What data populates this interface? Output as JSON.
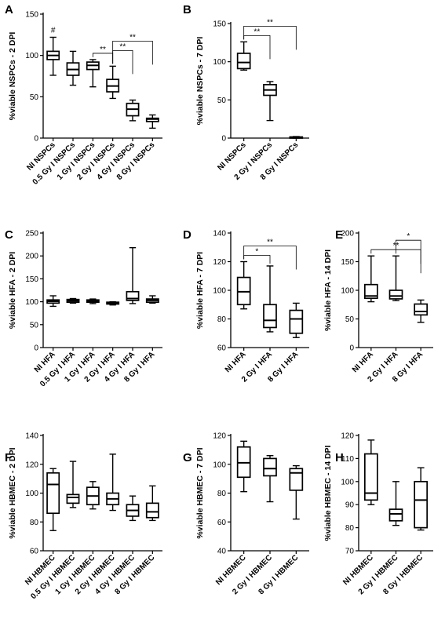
{
  "chart_data": [
    {
      "panel": "A",
      "type": "box",
      "ylabel": "%viable NSPCs - 2 DPI",
      "ylim": [
        0,
        150
      ],
      "yticks": [
        0,
        50,
        100,
        150
      ],
      "categories": [
        "NI NSPCs",
        "0.5 Gy I NSPCs",
        "1 Gy I NSPCs",
        "2 Gy I NSPCs",
        "4 Gy I NSPCs",
        "8 Gy I NSPCs"
      ],
      "boxes": [
        {
          "min": 76,
          "q1": 95,
          "median": 100,
          "q3": 105,
          "max": 122
        },
        {
          "min": 64,
          "q1": 76,
          "median": 83,
          "q3": 91,
          "max": 105
        },
        {
          "min": 62,
          "q1": 83,
          "median": 88,
          "q3": 92,
          "max": 95
        },
        {
          "min": 48,
          "q1": 56,
          "median": 63,
          "q3": 71,
          "max": 87
        },
        {
          "min": 21,
          "q1": 27,
          "median": 35,
          "q3": 42,
          "max": 46
        },
        {
          "min": 12,
          "q1": 20,
          "median": 23,
          "q3": 24,
          "max": 28
        }
      ],
      "annotations": [
        {
          "text": "#",
          "over": 0
        },
        {
          "text": "**",
          "from": 2,
          "to": 3
        },
        {
          "text": "**",
          "from": 3,
          "to": 4
        },
        {
          "text": "**",
          "from": 3,
          "to": 5
        }
      ]
    },
    {
      "panel": "B",
      "type": "box",
      "ylabel": "%viable NSPCs - 7 DPI",
      "ylim": [
        0,
        150
      ],
      "yticks": [
        0,
        50,
        100,
        150
      ],
      "categories": [
        "NI NSPCs",
        "2 Gy I NSPCs",
        "8 Gy I NSPCs"
      ],
      "boxes": [
        {
          "min": 89,
          "q1": 91,
          "median": 99,
          "q3": 111,
          "max": 126
        },
        {
          "min": 23,
          "q1": 56,
          "median": 63,
          "q3": 70,
          "max": 74
        },
        {
          "min": 0,
          "q1": 0,
          "median": 1,
          "q3": 1.5,
          "max": 2
        }
      ],
      "annotations": [
        {
          "text": "**",
          "from": 0,
          "to": 1
        },
        {
          "text": "**",
          "from": 0,
          "to": 2
        }
      ]
    },
    {
      "panel": "C",
      "type": "box",
      "ylabel": "%viable HFA - 2 DPI",
      "ylim": [
        0,
        250
      ],
      "yticks": [
        0,
        50,
        100,
        150,
        200,
        250
      ],
      "categories": [
        "NI HFA",
        "0.5 Gy I HFA",
        "1 Gy I HFA",
        "2 Gy I HFA",
        "4 Gy I HFA",
        "8 Gy I HFA"
      ],
      "boxes": [
        {
          "min": 90,
          "q1": 97,
          "median": 101,
          "q3": 104,
          "max": 113
        },
        {
          "min": 97,
          "q1": 99,
          "median": 102,
          "q3": 105,
          "max": 107
        },
        {
          "min": 96,
          "q1": 99,
          "median": 101,
          "q3": 104,
          "max": 106
        },
        {
          "min": 93,
          "q1": 95,
          "median": 97,
          "q3": 99,
          "max": 100
        },
        {
          "min": 96,
          "q1": 103,
          "median": 107,
          "q3": 122,
          "max": 218
        },
        {
          "min": 97,
          "q1": 99,
          "median": 103,
          "q3": 106,
          "max": 113
        }
      ],
      "annotations": []
    },
    {
      "panel": "D",
      "type": "box",
      "ylabel": "%viable HFA - 7 DPI",
      "ylim": [
        60,
        140
      ],
      "yticks": [
        60,
        80,
        100,
        120,
        140
      ],
      "categories": [
        "NI HFA",
        "2 Gy I HFA",
        "8 Gy I HFA"
      ],
      "boxes": [
        {
          "min": 87,
          "q1": 90,
          "median": 99,
          "q3": 109,
          "max": 120
        },
        {
          "min": 71,
          "q1": 74,
          "median": 79,
          "q3": 90,
          "max": 117
        },
        {
          "min": 67,
          "q1": 70,
          "median": 80,
          "q3": 86,
          "max": 91
        }
      ],
      "annotations": [
        {
          "text": "*",
          "from": 0,
          "to": 1
        },
        {
          "text": "**",
          "from": 0,
          "to": 2
        }
      ]
    },
    {
      "panel": "E",
      "type": "box",
      "ylabel": "%viable HFA - 14 DPI",
      "ylim": [
        0,
        200
      ],
      "yticks": [
        0,
        50,
        100,
        150,
        200
      ],
      "categories": [
        "NI HFA",
        "2 Gy I HFA",
        "8 Gy I HFA"
      ],
      "boxes": [
        {
          "min": 80,
          "q1": 86,
          "median": 90,
          "q3": 110,
          "max": 160
        },
        {
          "min": 82,
          "q1": 85,
          "median": 90,
          "q3": 100,
          "max": 160
        },
        {
          "min": 44,
          "q1": 57,
          "median": 63,
          "q3": 76,
          "max": 83
        }
      ],
      "annotations": [
        {
          "text": "**",
          "from": 0,
          "to": 2
        },
        {
          "text": "*",
          "from": 1,
          "to": 2
        }
      ]
    },
    {
      "panel": "F",
      "type": "box",
      "ylabel": "%viable HBMEC - 2 DPI",
      "ylim": [
        60,
        140
      ],
      "yticks": [
        60,
        80,
        100,
        120,
        140
      ],
      "categories": [
        "NI HBMEC",
        "0.5 Gy I HBMEC",
        "1 Gy I HBMEC",
        "2 Gy I HBMEC",
        "4 Gy I HBMEC",
        "8 Gy I HBMEC"
      ],
      "boxes": [
        {
          "min": 74,
          "q1": 86,
          "median": 106,
          "q3": 114,
          "max": 117
        },
        {
          "min": 90,
          "q1": 93,
          "median": 97,
          "q3": 99,
          "max": 122
        },
        {
          "min": 89,
          "q1": 92,
          "median": 98,
          "q3": 104,
          "max": 108
        },
        {
          "min": 88,
          "q1": 92,
          "median": 96,
          "q3": 100,
          "max": 127
        },
        {
          "min": 81,
          "q1": 84,
          "median": 88,
          "q3": 92,
          "max": 98
        },
        {
          "min": 81,
          "q1": 83,
          "median": 87,
          "q3": 93,
          "max": 105
        }
      ],
      "annotations": []
    },
    {
      "panel": "G",
      "type": "box",
      "ylabel": "%viable HBMEC - 7 DPI",
      "ylim": [
        40,
        120
      ],
      "yticks": [
        40,
        60,
        80,
        100,
        120
      ],
      "categories": [
        "NI HBMEC",
        "2 Gy I HBMEC",
        "8 Gy I HBMEC"
      ],
      "boxes": [
        {
          "min": 81,
          "q1": 91,
          "median": 101,
          "q3": 112,
          "max": 116
        },
        {
          "min": 74,
          "q1": 92,
          "median": 97,
          "q3": 104,
          "max": 106
        },
        {
          "min": 62,
          "q1": 82,
          "median": 94,
          "q3": 97,
          "max": 99
        }
      ],
      "annotations": []
    },
    {
      "panel": "H",
      "type": "box",
      "ylabel": "%viable HBMEC - 14 DPI",
      "ylim": [
        70,
        120
      ],
      "yticks": [
        70,
        80,
        90,
        100,
        110,
        120
      ],
      "categories": [
        "NI HBMEC",
        "2 Gy I HBMEC",
        "8 Gy I HBMEC"
      ],
      "boxes": [
        {
          "min": 90,
          "q1": 92,
          "median": 95,
          "q3": 112,
          "max": 118
        },
        {
          "min": 81,
          "q1": 83,
          "median": 86,
          "q3": 88,
          "max": 100
        },
        {
          "min": 79,
          "q1": 80,
          "median": 92,
          "q3": 100,
          "max": 106
        }
      ],
      "annotations": []
    }
  ]
}
